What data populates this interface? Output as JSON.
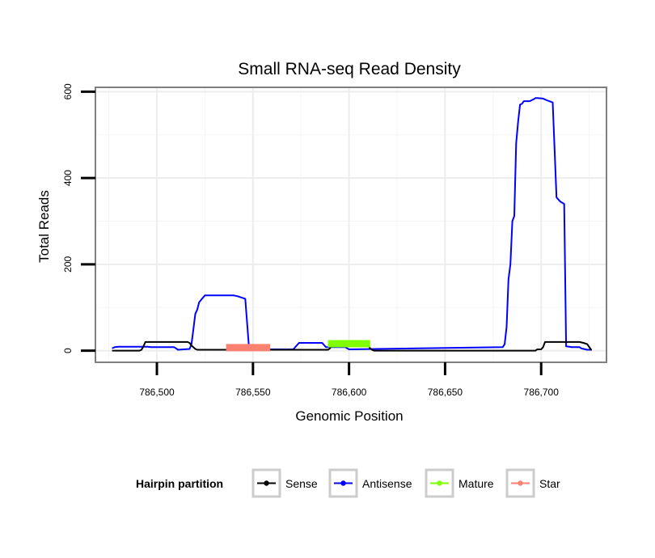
{
  "chart_data": {
    "type": "line",
    "title": "Small RNA-seq Read Density",
    "xlabel": "Genomic Position",
    "ylabel": "Total Reads",
    "xlim": [
      786468,
      786734
    ],
    "ylim": [
      -27,
      610
    ],
    "x_ticks": [
      786500,
      786550,
      786600,
      786650,
      786700
    ],
    "x_tick_labels": [
      "786,500",
      "786,550",
      "786,600",
      "786,650",
      "786,700"
    ],
    "y_ticks": [
      0,
      200,
      400,
      600
    ],
    "y_tick_labels": [
      "0",
      "200",
      "400",
      "600"
    ],
    "grid": true,
    "legend": {
      "title": "Hairpin partition",
      "position": "bottom",
      "entries": [
        {
          "name": "Sense",
          "color": "#000000"
        },
        {
          "name": "Antisense",
          "color": "#0000ff"
        },
        {
          "name": "Mature",
          "color": "#7fff00"
        },
        {
          "name": "Star",
          "color": "#fa8072"
        }
      ]
    },
    "series": [
      {
        "name": "Antisense",
        "color": "#0000ff",
        "x": [
          786477,
          786478,
          786480,
          786495,
          786497,
          786509,
          786511,
          786517,
          786518,
          786519,
          786520,
          786521,
          786522,
          786524,
          786525,
          786540,
          786541,
          786542,
          786544,
          786546,
          786548,
          786571,
          786574,
          786586,
          786588,
          786598,
          786600,
          786680,
          786681,
          786682,
          786683,
          786684,
          786685,
          786686,
          786687,
          786688,
          786689,
          786690,
          786691,
          786694,
          786696,
          786697,
          786698,
          786701,
          786703,
          786706,
          786708,
          786710,
          786712,
          786713,
          786716,
          786720,
          786721,
          786724,
          786726
        ],
        "y": [
          6,
          8,
          9,
          9,
          8,
          8,
          2,
          4,
          15,
          50,
          85,
          95,
          112,
          123,
          128,
          128,
          127,
          126,
          123,
          120,
          3,
          3,
          18,
          18,
          8,
          8,
          3,
          8,
          15,
          55,
          165,
          200,
          300,
          312,
          480,
          530,
          570,
          572,
          578,
          578,
          582,
          585,
          585,
          584,
          580,
          575,
          355,
          345,
          340,
          10,
          8,
          8,
          5,
          2,
          2
        ]
      },
      {
        "name": "Sense",
        "color": "#000000",
        "x": [
          786477,
          786491,
          786492,
          786493,
          786494,
          786516,
          786517,
          786518,
          786520,
          786521,
          786589,
          786590,
          786591,
          786592,
          786609,
          786610,
          786611,
          786612,
          786613,
          786697,
          786698,
          786700,
          786701,
          786702,
          786720,
          786722,
          786724,
          786726
        ],
        "y": [
          0,
          0,
          2,
          10,
          20,
          20,
          18,
          12,
          4,
          2,
          2,
          5,
          12,
          18,
          18,
          12,
          5,
          2,
          0,
          0,
          3,
          3,
          8,
          20,
          20,
          18,
          15,
          2
        ]
      },
      {
        "name": "Mature",
        "color": "#7fff00",
        "x": [
          786589,
          786611
        ],
        "y": [
          16,
          16
        ]
      },
      {
        "name": "Star",
        "color": "#fa8072",
        "x": [
          786536,
          786559
        ],
        "y": [
          7,
          7
        ]
      }
    ]
  }
}
